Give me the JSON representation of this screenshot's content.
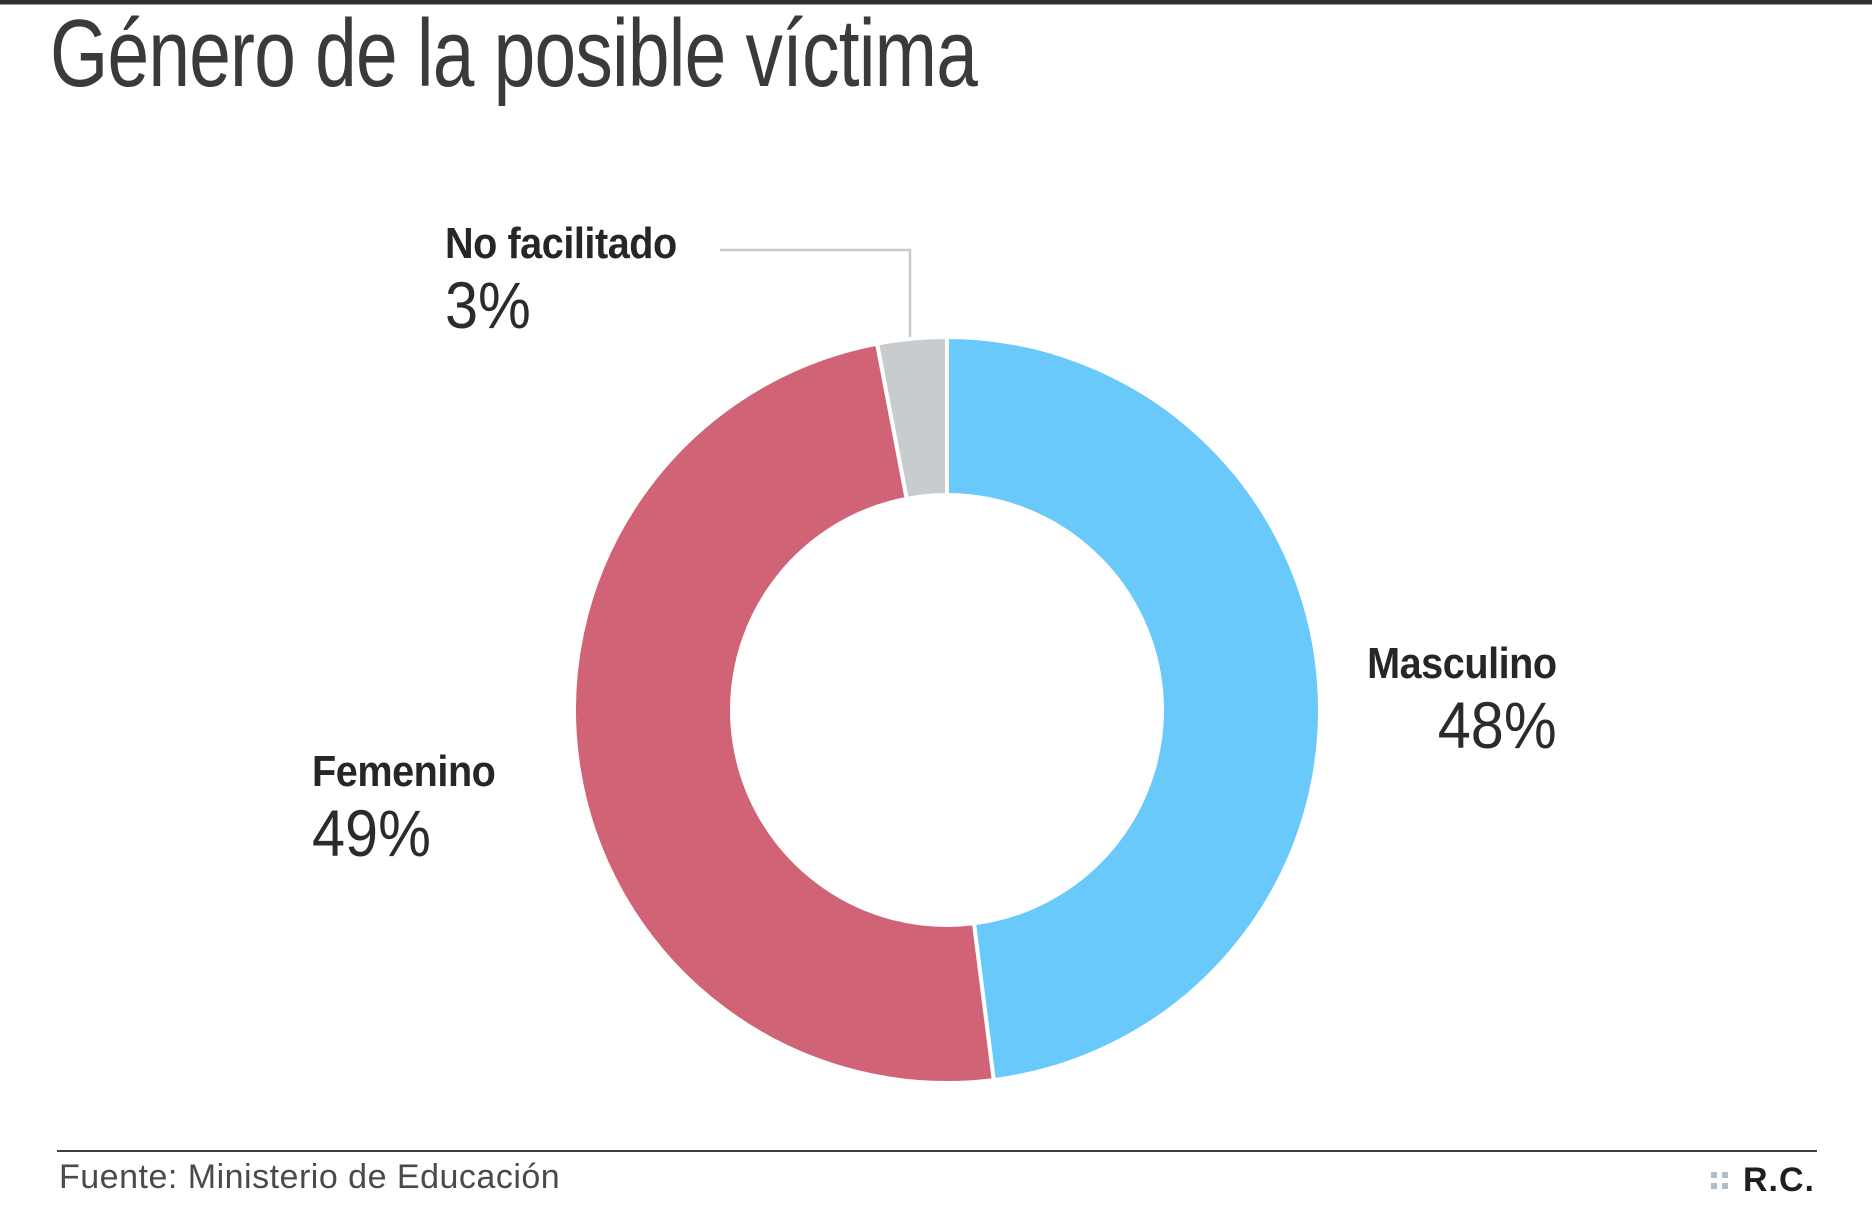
{
  "page": {
    "title": "Género de la posible víctima",
    "footer": {
      "source": "Fuente: Ministerio de Educación",
      "credit": "R.C."
    }
  },
  "icons": {
    "credit_mark": "four-squares-grid-icon"
  },
  "colors": {
    "masculino": "#69c9fb",
    "femenino": "#d16376",
    "no_facilitado": "#c9ccce",
    "separator": "#ffffff",
    "leader_line": "#c9c9c9",
    "title_text": "#3a3a3a",
    "label_text": "#262626",
    "top_bar": "#2e2e2e"
  },
  "chart_data": {
    "type": "pie",
    "subtype": "donut",
    "title": "Género de la posible víctima",
    "start_angle": "top",
    "direction": "clockwise",
    "inner_radius_ratio": 0.577,
    "legend_position": "around-slices",
    "segments": [
      {
        "label": "Masculino",
        "value": 48,
        "display": "48%",
        "color": "#69c9fb"
      },
      {
        "label": "Femenino",
        "value": 49,
        "display": "49%",
        "color": "#d16376"
      },
      {
        "label": "No facilitado",
        "value": 3,
        "display": "3%",
        "color": "#c9ccce"
      }
    ],
    "source": "Fuente: Ministerio de Educación"
  }
}
